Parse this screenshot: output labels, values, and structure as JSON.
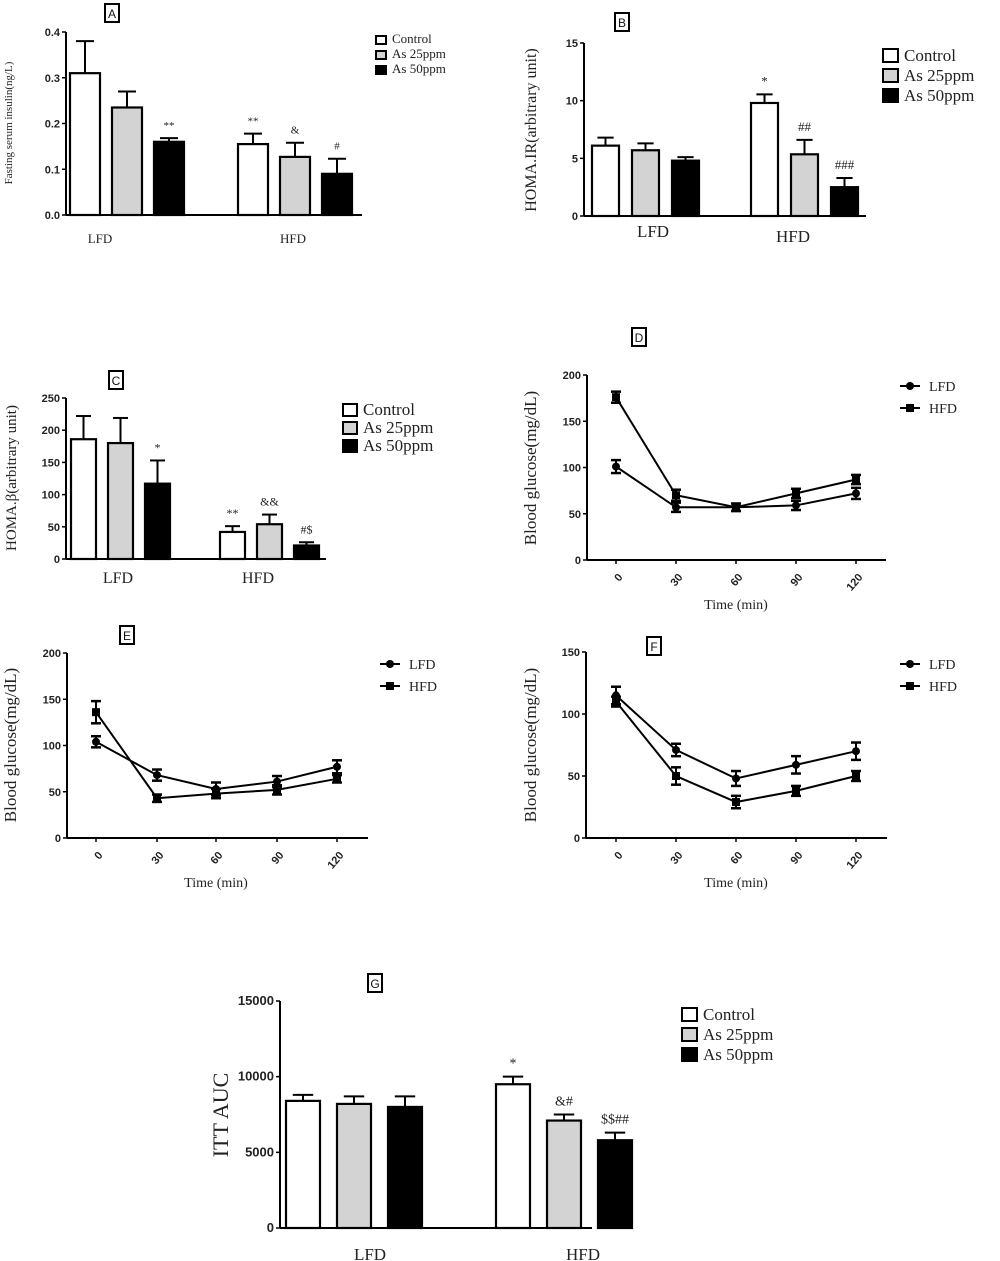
{
  "colors": {
    "control": "#ffffff",
    "as25": "#d3d3d3",
    "as50": "#000000",
    "stroke": "#000000"
  },
  "chart_data": [
    {
      "panel": "A",
      "type": "bar",
      "ylabel": "Fasting serum insulin(ng/L)",
      "categories": [
        "LFD",
        "HFD"
      ],
      "ylim": [
        0,
        0.4
      ],
      "yticks": [
        "0.0",
        "0.1",
        "0.2",
        "0.3",
        "0.4"
      ],
      "ytick_values": [
        0,
        0.1,
        0.2,
        0.3,
        0.4
      ],
      "legend": [
        "Control",
        "As 25ppm",
        "As 50ppm"
      ],
      "legend_position": "right",
      "series": [
        {
          "name": "Control",
          "values": [
            0.31,
            0.155
          ],
          "errors": [
            0.07,
            0.023
          ],
          "annotations": [
            "",
            "**"
          ]
        },
        {
          "name": "As 25ppm",
          "values": [
            0.235,
            0.127
          ],
          "errors": [
            0.035,
            0.031
          ],
          "annotations": [
            "",
            "&"
          ]
        },
        {
          "name": "As 50ppm",
          "values": [
            0.16,
            0.09
          ],
          "errors": [
            0.008,
            0.033
          ],
          "annotations": [
            "**",
            "#"
          ]
        }
      ]
    },
    {
      "panel": "B",
      "type": "bar",
      "ylabel": "HOMA.IR(arbitrary unit)",
      "categories": [
        "LFD",
        "HFD"
      ],
      "ylim": [
        0,
        15
      ],
      "yticks": [
        "0",
        "5",
        "10",
        "15"
      ],
      "ytick_values": [
        0,
        5,
        10,
        15
      ],
      "legend": [
        "Control",
        "As 25ppm",
        "As 50ppm"
      ],
      "legend_position": "right",
      "series": [
        {
          "name": "Control",
          "values": [
            6.1,
            9.8
          ],
          "errors": [
            0.7,
            0.75
          ],
          "annotations": [
            "",
            "*"
          ]
        },
        {
          "name": "As 25ppm",
          "values": [
            5.7,
            5.35
          ],
          "errors": [
            0.6,
            1.25
          ],
          "annotations": [
            "",
            "##"
          ]
        },
        {
          "name": "As 50ppm",
          "values": [
            4.8,
            2.5
          ],
          "errors": [
            0.3,
            0.8
          ],
          "annotations": [
            "",
            "###"
          ]
        }
      ]
    },
    {
      "panel": "C",
      "type": "bar",
      "ylabel": "HOMA.β(arbitrary unit)",
      "categories": [
        "LFD",
        "HFD"
      ],
      "ylim": [
        0,
        250
      ],
      "yticks": [
        "0",
        "50",
        "100",
        "150",
        "200",
        "250"
      ],
      "ytick_values": [
        0,
        50,
        100,
        150,
        200,
        250
      ],
      "legend": [
        "Control",
        "As 25ppm",
        "As 50ppm"
      ],
      "legend_position": "right",
      "series": [
        {
          "name": "Control",
          "values": [
            186,
            42
          ],
          "errors": [
            36,
            9
          ],
          "annotations": [
            "",
            "**"
          ]
        },
        {
          "name": "As 25ppm",
          "values": [
            180,
            54
          ],
          "errors": [
            39,
            15
          ],
          "annotations": [
            "",
            "&&"
          ]
        },
        {
          "name": "As 50ppm",
          "values": [
            117,
            21
          ],
          "errors": [
            36,
            5
          ],
          "annotations": [
            "*",
            "#$"
          ]
        }
      ]
    },
    {
      "panel": "D",
      "type": "line",
      "ylabel": "Blood glucose(mg/dL)",
      "xlabel": "Time (min)",
      "x": [
        0,
        30,
        60,
        90,
        120
      ],
      "xticks": [
        "0",
        "30",
        "60",
        "90",
        "120"
      ],
      "ylim": [
        0,
        200
      ],
      "yticks": [
        "0",
        "50",
        "100",
        "150",
        "200"
      ],
      "ytick_values": [
        0,
        50,
        100,
        150,
        200
      ],
      "legend_position": "top-right",
      "series": [
        {
          "name": "LFD",
          "marker": "circle",
          "values": [
            101,
            57,
            57,
            59,
            72
          ],
          "errors": [
            7,
            5,
            4,
            5,
            6
          ]
        },
        {
          "name": "HFD",
          "marker": "square",
          "values": [
            176,
            70,
            57,
            72,
            87
          ],
          "errors": [
            6,
            6,
            4,
            5,
            5
          ]
        }
      ]
    },
    {
      "panel": "E",
      "type": "line",
      "ylabel": "Blood glucose(mg/dL)",
      "xlabel": "Time (min)",
      "x": [
        0,
        30,
        60,
        90,
        120
      ],
      "xticks": [
        "0",
        "30",
        "60",
        "90",
        "120"
      ],
      "ylim": [
        0,
        200
      ],
      "yticks": [
        "0",
        "50",
        "100",
        "150",
        "200"
      ],
      "ytick_values": [
        0,
        50,
        100,
        150,
        200
      ],
      "legend_position": "top-right",
      "series": [
        {
          "name": "LFD",
          "marker": "circle",
          "values": [
            104,
            68,
            53,
            61,
            77
          ],
          "errors": [
            6,
            6,
            7,
            6,
            7
          ]
        },
        {
          "name": "HFD",
          "marker": "square",
          "values": [
            136,
            43,
            48,
            52,
            64
          ],
          "errors": [
            12,
            4,
            5,
            5,
            4
          ]
        }
      ]
    },
    {
      "panel": "F",
      "type": "line",
      "ylabel": "Blood glucose(mg/dL)",
      "xlabel": "Time (min)",
      "x": [
        0,
        30,
        60,
        90,
        120
      ],
      "xticks": [
        "0",
        "30",
        "60",
        "90",
        "120"
      ],
      "ylim": [
        0,
        150
      ],
      "yticks": [
        "0",
        "50",
        "100",
        "150"
      ],
      "ytick_values": [
        0,
        50,
        100,
        150
      ],
      "legend_position": "top-right",
      "series": [
        {
          "name": "LFD",
          "marker": "circle",
          "values": [
            115,
            71,
            48,
            59,
            70
          ],
          "errors": [
            7,
            5,
            6,
            7,
            7
          ]
        },
        {
          "name": "HFD",
          "marker": "square",
          "values": [
            110,
            50,
            29,
            38,
            50
          ],
          "errors": [
            4,
            7,
            5,
            4,
            4
          ]
        }
      ]
    },
    {
      "panel": "G",
      "type": "bar",
      "ylabel": "ITT AUC",
      "categories": [
        "LFD",
        "HFD"
      ],
      "ylim": [
        0,
        15000
      ],
      "yticks": [
        "0",
        "5000",
        "10000",
        "15000"
      ],
      "ytick_values": [
        0,
        5000,
        10000,
        15000
      ],
      "legend": [
        "Control",
        "As 25ppm",
        "As 50ppm"
      ],
      "legend_position": "right",
      "series": [
        {
          "name": "Control",
          "values": [
            8400,
            9500
          ],
          "errors": [
            400,
            500
          ],
          "annotations": [
            "",
            "*"
          ]
        },
        {
          "name": "As 25ppm",
          "values": [
            8200,
            7100
          ],
          "errors": [
            500,
            400
          ],
          "annotations": [
            "",
            "&#"
          ]
        },
        {
          "name": "As 50ppm",
          "values": [
            8000,
            5800
          ],
          "errors": [
            700,
            500
          ],
          "annotations": [
            "",
            "$$##"
          ]
        }
      ]
    }
  ]
}
